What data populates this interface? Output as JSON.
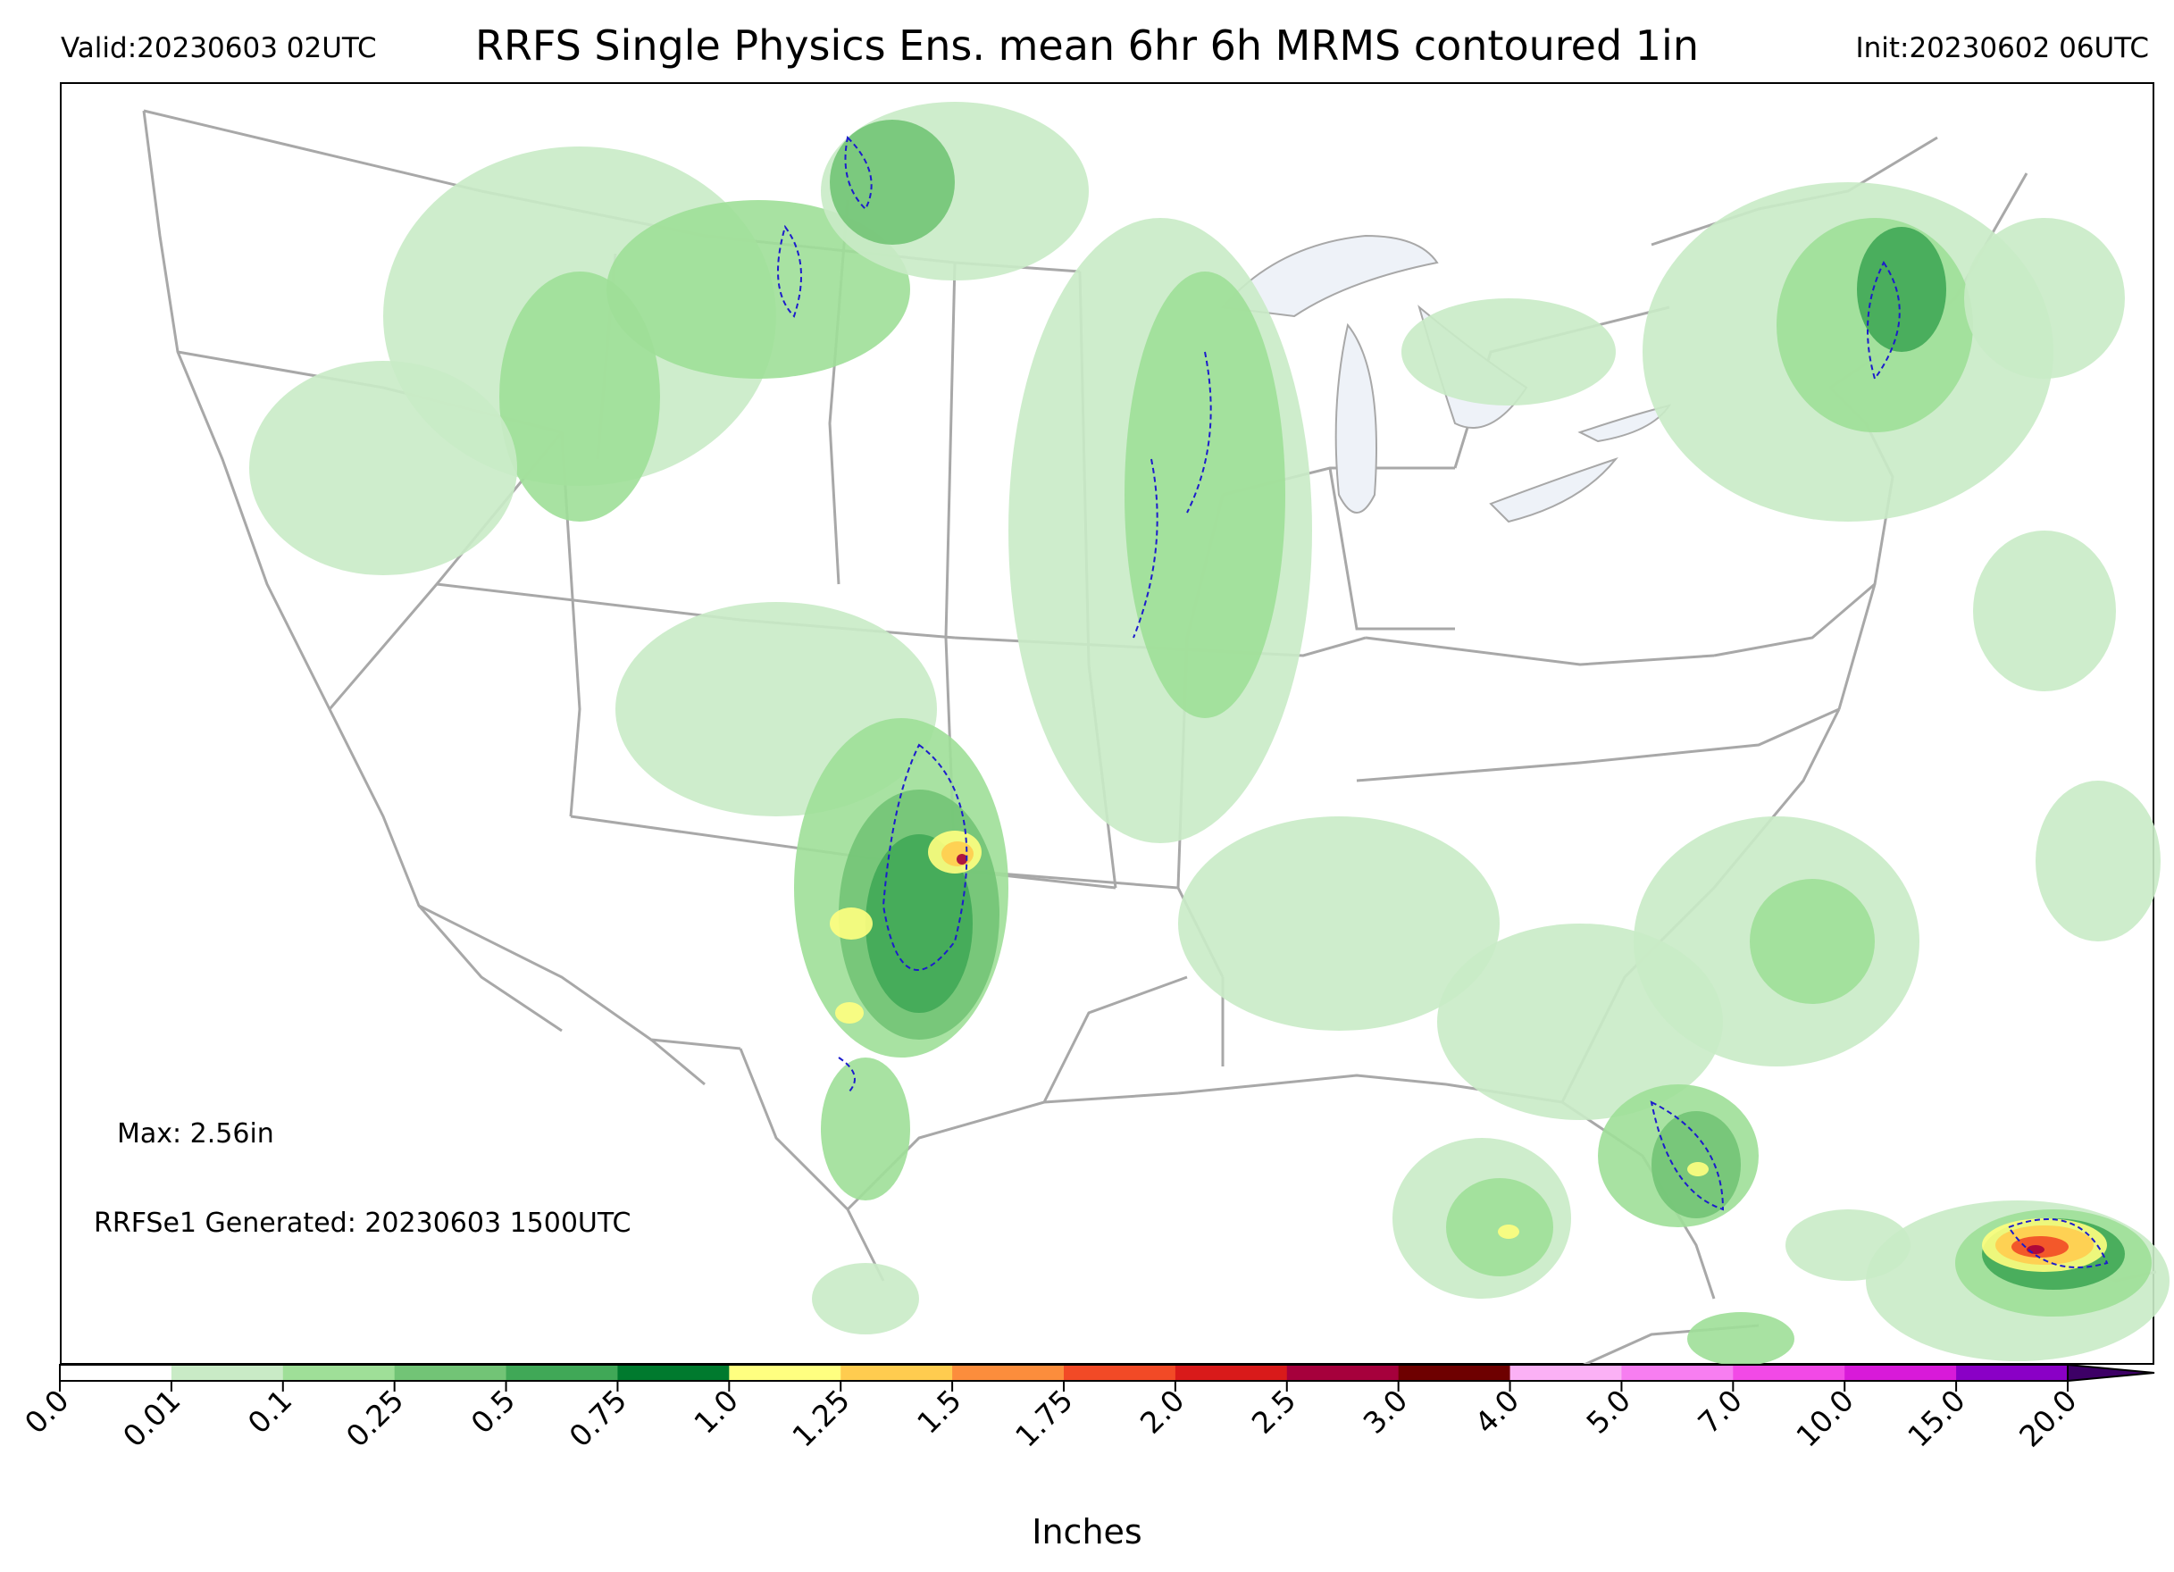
{
  "header": {
    "valid": "Valid:20230603 02UTC",
    "title": "RRFS Single Physics Ens. mean 6hr 6h MRMS contoured 1in",
    "init": "Init:20230602 06UTC"
  },
  "map": {
    "max_label": "Max: 2.56in",
    "generated_label": "RRFSe1 Generated: 20230603 1500UTC",
    "contour_color": "#1c1ccc",
    "border_color": "#a8a8a8",
    "lake_color": "#eef2f8"
  },
  "colorbar": {
    "label": "Inches",
    "ticks": [
      "0.0",
      "0.01",
      "0.1",
      "0.25",
      "0.5",
      "0.75",
      "1.0",
      "1.25",
      "1.5",
      "1.75",
      "2.0",
      "2.5",
      "3.0",
      "4.0",
      "5.0",
      "7.0",
      "10.0",
      "15.0",
      "20.0"
    ],
    "colors": [
      "#ffffff",
      "#c9ebc6",
      "#9fdf98",
      "#72c476",
      "#40a857",
      "#007a2e",
      "#ffff80",
      "#ffcc4f",
      "#fc8d3c",
      "#f24a26",
      "#d91a1a",
      "#a6003c",
      "#6e0000",
      "#fbb1f5",
      "#f77ef1",
      "#f249e6",
      "#d81ad9",
      "#8a00c6"
    ],
    "extend_color": "#3d0066"
  },
  "legend_levels": {
    "light": "#c9ebc6",
    "mid": "#9fdf98",
    "mid2": "#72c476",
    "strong": "#40a857",
    "dark": "#007a2e",
    "yellow": "#ffff80",
    "orange": "#ffcc4f",
    "red": "#f24a26",
    "maroon": "#a6003c"
  }
}
